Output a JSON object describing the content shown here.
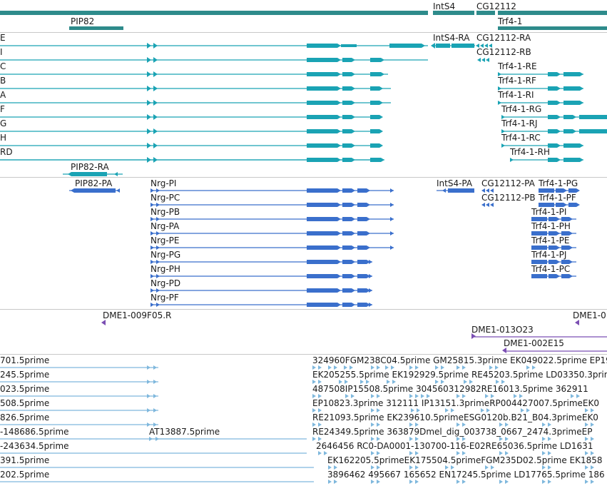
{
  "colors": {
    "gene": "#2e8b8b",
    "transcript_teal": "#1aa3b4",
    "transcript_blue": "#3a6fcc",
    "probe_purple": "#7b4fb3",
    "est_lightblue": "#7fb8dd",
    "separator": "#c8c8c8"
  },
  "tracks": {
    "genes": {
      "label_intS4": "IntS4",
      "label_cg12112": "CG12112",
      "label_pip82": "PIP82",
      "label_trf41": "Trf4-1"
    },
    "transcripts_teal": {
      "left_labels": [
        "E",
        "I",
        "C",
        "B",
        "A",
        "F",
        "G",
        "H",
        "RD"
      ],
      "intS4_ra": "IntS4-RA",
      "cg12112_ra": "CG12112-RA",
      "cg12112_rb": "CG12112-RB",
      "trf_labels": [
        "Trf4-1-RE",
        "Trf4-1-RF",
        "Trf4-1-RI",
        "Trf4-1-RG",
        "Trf4-1-RJ",
        "Trf4-1-RC",
        "Trf4-1-RH"
      ],
      "pip82_ra": "PIP82-RA"
    },
    "transcripts_blue": {
      "pip82_pa": "PIP82-PA",
      "nrg_labels": [
        "Nrg-PI",
        "Nrg-PC",
        "Nrg-PB",
        "Nrg-PA",
        "Nrg-PE",
        "Nrg-PG",
        "Nrg-PH",
        "Nrg-PD",
        "Nrg-PF"
      ],
      "intS4_pa": "IntS4-PA",
      "cg12112_pa": "CG12112-PA",
      "cg12112_pb": "CG12112-PB",
      "trf_labels": [
        "Trf4-1-PG",
        "Trf4-1-PF",
        "Trf4-1-PI",
        "Trf4-1-PH",
        "Trf4-1-PE",
        "Trf4-1-PJ",
        "Trf4-1-PC"
      ]
    },
    "probes": {
      "p1": "DME1-009F05.R",
      "p2": "DME1-0",
      "p3": "DME1-013O23",
      "p4": "DME1-002E15"
    },
    "ests": {
      "left_labels": [
        "701.5prime",
        "245.5prime",
        "023.5prime",
        "508.5prime",
        "826.5prime",
        "-148686.5prime",
        "-243634.5prime",
        "391.5prime",
        "202.5prime"
      ],
      "at": "AT13887.5prime",
      "rows": [
        "324960FGM238C04.5prime  GM25815.3prime EK049022.5prime EP191",
        "EK205255.5prime  EK192929.5prime RE45203.5prime  LD03350.3prime",
        "487508IP15508.5prime   304560312982RE16013.5prime      362911",
        "EP10823.3prime     312111 IP13151.3primeRP004427007.5primeEK0",
        "RE21093.5prime     EK239610.5primeESG0120b.B21_B04.3primeEK0",
        "RE24349.5prime     363879Dmel_dig_003738_0667_2474.3primeEP",
        "2646456 RC0-DA0001-130700-116-E02RE65036.5prime   LD1631",
        "EK162205.5primeEK175504.5primeFGM235D02.5prime     EK1858",
        "3896462 495667 165652 EN17245.5prime LD17765.5prime  186"
      ]
    }
  }
}
